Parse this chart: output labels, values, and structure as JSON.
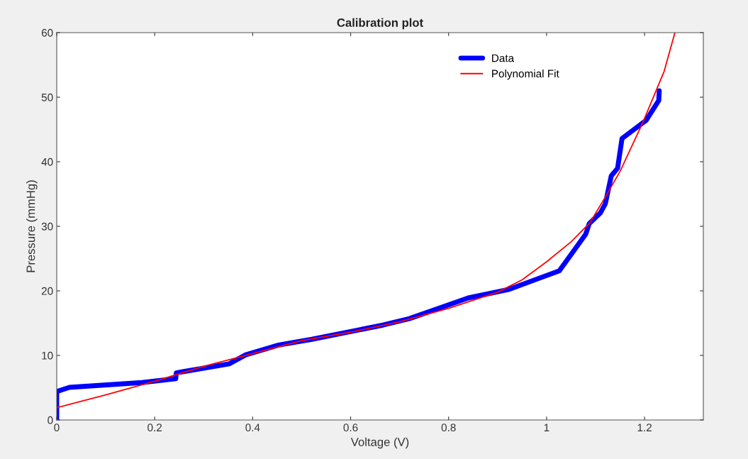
{
  "chart_data": {
    "type": "line",
    "title": "Calibration plot",
    "xlabel": "Voltage (V)",
    "ylabel": "Pressure (mmHg)",
    "xlim": [
      0,
      1.32
    ],
    "ylim": [
      0,
      60
    ],
    "xticks": [
      0,
      0.2,
      0.4,
      0.6,
      0.8,
      1,
      1.2
    ],
    "yticks": [
      0,
      10,
      20,
      30,
      40,
      50,
      60
    ],
    "grid": false,
    "legend": "top right",
    "series": [
      {
        "name": "Data",
        "color": "#0000ff",
        "x": [
          0,
          0,
          0.026,
          0.174,
          0.243,
          0.244,
          0.352,
          0.386,
          0.453,
          0.521,
          0.666,
          0.72,
          0.84,
          0.922,
          1.026,
          1.08,
          1.087,
          1.11,
          1.12,
          1.132,
          1.145,
          1.154,
          1.203,
          1.229,
          1.23
        ],
        "values": [
          0,
          4.4,
          5.05,
          5.8,
          6.4,
          7.3,
          8.7,
          10.1,
          11.6,
          12.5,
          14.7,
          15.7,
          18.9,
          20.2,
          23.1,
          28.8,
          30.4,
          32.1,
          33.5,
          37.8,
          39.0,
          43.6,
          46.4,
          49.5,
          51.0
        ]
      },
      {
        "name": "Polynomial Fit",
        "color": "#ff0000",
        "x": [
          0,
          0.1,
          0.2,
          0.3,
          0.4,
          0.5,
          0.6,
          0.7,
          0.8,
          0.9,
          0.95,
          1.0,
          1.05,
          1.089,
          1.118,
          1.15,
          1.196,
          1.24,
          1.262
        ],
        "values": [
          1.9,
          3.9,
          6.0,
          8.3,
          10.3,
          12.3,
          13.6,
          15.2,
          17.3,
          19.8,
          21.7,
          24.5,
          27.6,
          30.6,
          34.3,
          38.5,
          46.0,
          54.0,
          60.0
        ]
      }
    ]
  }
}
